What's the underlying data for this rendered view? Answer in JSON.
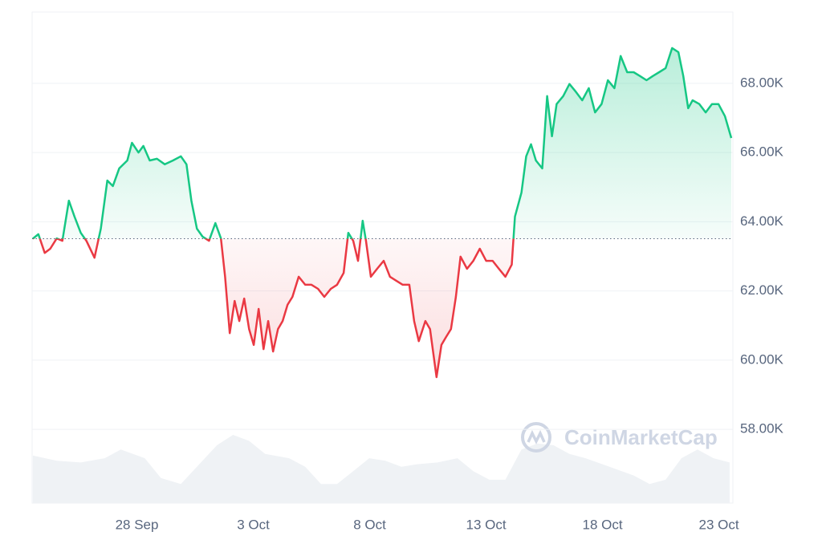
{
  "chart_data": {
    "type": "line",
    "watermark": "CoinMarketCap",
    "up_color": "#16c784",
    "down_color": "#ea3943",
    "volume_color": "#eff2f5",
    "xlim": [
      0.5,
      30.6
    ],
    "xticks": [
      {
        "value": 5,
        "label": "28 Sep"
      },
      {
        "value": 10,
        "label": "3 Oct"
      },
      {
        "value": 15,
        "label": "8 Oct"
      },
      {
        "value": 20,
        "label": "13 Oct"
      },
      {
        "value": 25,
        "label": "18 Oct"
      },
      {
        "value": 30,
        "label": "23 Oct"
      }
    ],
    "ylim": [
      55870,
      70060
    ],
    "yticks": [
      {
        "value": 58000,
        "label": "58.00K"
      },
      {
        "value": 60000,
        "label": "60.00K"
      },
      {
        "value": 62000,
        "label": "62.00K"
      },
      {
        "value": 64000,
        "label": "64.00K"
      },
      {
        "value": 66000,
        "label": "66.00K"
      },
      {
        "value": 68000,
        "label": "68.00K"
      }
    ],
    "grid": true,
    "x": [
      0.53,
      0.77,
      1.04,
      1.28,
      1.56,
      1.8,
      2.08,
      2.32,
      2.59,
      2.83,
      3.18,
      3.45,
      3.73,
      3.97,
      4.24,
      4.59,
      4.79,
      5.07,
      5.28,
      5.55,
      5.86,
      6.2,
      6.55,
      6.89,
      7.13,
      7.34,
      7.58,
      7.82,
      8.1,
      8.37,
      8.61,
      8.79,
      8.99,
      9.2,
      9.4,
      9.61,
      9.82,
      10.02,
      10.23,
      10.44,
      10.64,
      10.85,
      11.06,
      11.26,
      11.47,
      11.68,
      11.95,
      12.23,
      12.5,
      12.78,
      13.05,
      13.33,
      13.6,
      13.88,
      14.08,
      14.29,
      14.5,
      14.7,
      14.84,
      15.05,
      15.32,
      15.6,
      15.87,
      16.15,
      16.42,
      16.7,
      16.91,
      17.11,
      17.39,
      17.59,
      17.87,
      18.08,
      18.28,
      18.49,
      18.7,
      18.9,
      19.18,
      19.45,
      19.73,
      20.0,
      20.28,
      20.55,
      20.83,
      21.1,
      21.24,
      21.52,
      21.72,
      21.93,
      22.14,
      22.41,
      22.62,
      22.83,
      23.03,
      23.31,
      23.58,
      23.86,
      24.13,
      24.41,
      24.68,
      24.96,
      25.23,
      25.51,
      25.78,
      26.06,
      26.34,
      26.61,
      26.89,
      27.16,
      27.43,
      27.71,
      27.99,
      28.26,
      28.47,
      28.68,
      28.87,
      29.16,
      29.43,
      29.7,
      29.98,
      30.26,
      30.53
    ],
    "values": [
      63510,
      63640,
      63100,
      63220,
      63520,
      63450,
      64610,
      64150,
      63680,
      63450,
      62960,
      63800,
      65190,
      65030,
      65540,
      65770,
      66280,
      66000,
      66190,
      65770,
      65820,
      65660,
      65770,
      65890,
      65660,
      64610,
      63800,
      63570,
      63450,
      63960,
      63520,
      62410,
      60780,
      61710,
      61130,
      61780,
      60900,
      60440,
      61480,
      60320,
      61130,
      60250,
      60900,
      61130,
      61600,
      61830,
      62410,
      62180,
      62180,
      62060,
      61830,
      62060,
      62180,
      62520,
      63680,
      63450,
      62870,
      64030,
      63450,
      62410,
      62640,
      62870,
      62410,
      62290,
      62180,
      62180,
      61130,
      60550,
      61130,
      60900,
      59510,
      60440,
      60670,
      60900,
      61830,
      62990,
      62640,
      62870,
      63220,
      62870,
      62870,
      62640,
      62410,
      62760,
      64150,
      64840,
      65890,
      66240,
      65770,
      65540,
      67630,
      66470,
      67400,
      67630,
      67980,
      67750,
      67510,
      67860,
      67160,
      67400,
      68090,
      67860,
      68790,
      68320,
      68320,
      68210,
      68090,
      68210,
      68320,
      68440,
      69020,
      68900,
      68210,
      67280,
      67510,
      67400,
      67160,
      67400,
      67400,
      67050,
      66420
    ],
    "volume": {
      "x": [
        0.53,
        1.56,
        2.59,
        3.62,
        4.31,
        5.34,
        6.03,
        6.89,
        7.75,
        8.44,
        9.13,
        9.82,
        10.51,
        11.54,
        12.23,
        12.91,
        13.6,
        14.29,
        14.98,
        15.67,
        16.36,
        17.04,
        17.91,
        18.77,
        19.45,
        20.14,
        20.83,
        21.52,
        22.2,
        22.89,
        23.58,
        24.27,
        25.3,
        26.34,
        27.02,
        27.71,
        28.39,
        29.08,
        29.77,
        30.46
      ],
      "values": [
        55,
        49,
        47,
        52,
        62,
        52,
        29,
        22,
        47,
        67,
        79,
        72,
        57,
        52,
        42,
        22,
        22,
        37,
        52,
        49,
        42,
        45,
        47,
        52,
        37,
        27,
        27,
        62,
        69,
        67,
        57,
        52,
        42,
        32,
        22,
        27,
        52,
        62,
        52,
        47
      ]
    }
  }
}
